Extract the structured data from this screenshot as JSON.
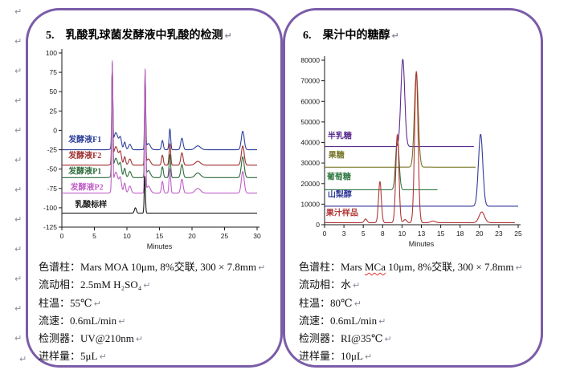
{
  "para_mark": "↵",
  "page": {
    "background": "#ffffff",
    "panel_border_color": "#7a5ca8"
  },
  "panels": [
    {
      "number": "5.",
      "title": "乳酸乳球菌发酵液中乳酸的检测",
      "specs": [
        {
          "label": "色谱柱：",
          "value": "Mars MOA 10μm, 8%交联, 300 × 7.8mm"
        },
        {
          "label": "流动相：",
          "value": "2.5mM H₂SO₄"
        },
        {
          "label": "柱温：",
          "value": "55℃"
        },
        {
          "label": "流速：",
          "value": "0.6mL/min"
        },
        {
          "label": "检测器：",
          "value": "UV@210nm"
        },
        {
          "label": "进样量：",
          "value": "5μL"
        }
      ]
    },
    {
      "number": "6.",
      "title": "果汁中的糖醇",
      "specs": [
        {
          "label": "色谱柱：",
          "value_pre": "Mars ",
          "value_mark": "MCa",
          "value_post": " 10μm, 8%交联, 300 × 7.8mm"
        },
        {
          "label": "流动相：",
          "value": "水"
        },
        {
          "label": "柱温：",
          "value": "80℃"
        },
        {
          "label": "流速：",
          "value": "0.6mL/min"
        },
        {
          "label": "检测器：",
          "value": "RI@35℃"
        },
        {
          "label": "进样量：",
          "value": "10μL"
        }
      ]
    }
  ],
  "chart_data": [
    {
      "type": "line",
      "title": "乳酸乳球菌发酵液中乳酸的检测 (chromatogram)",
      "xlabel": "Minutes",
      "ylabel": "",
      "xlim": [
        0,
        30
      ],
      "ylim": [
        -125,
        100
      ],
      "grid": false,
      "legend_position": "inline-left",
      "x_ticks": {
        "values": [
          0,
          5,
          10,
          15,
          20,
          25,
          30
        ],
        "labels": [
          "0",
          "5",
          "10",
          "15",
          "20",
          "25",
          "30"
        ]
      },
      "y_ticks": {
        "values": [
          100,
          75,
          50,
          25,
          0,
          -25,
          -50,
          -75,
          -100,
          -125
        ],
        "labels": [
          "100",
          "75",
          "50",
          "25",
          "0",
          "-25",
          "-50",
          "-75",
          "-100",
          "-125"
        ]
      },
      "peak_format": "[retention_min, height_above_baseline, sigma_min]",
      "series": [
        {
          "name": "发酵液F1",
          "color": "#2e4099",
          "baseline": -25,
          "peaks": [
            [
              7.75,
              100,
              0.08
            ],
            [
              8.3,
              22,
              0.35
            ],
            [
              9.0,
              14,
              0.18
            ],
            [
              9.65,
              10,
              0.15
            ],
            [
              10.45,
              7,
              0.2
            ],
            [
              12.8,
              97,
              0.08
            ],
            [
              13.3,
              8,
              0.3
            ],
            [
              15.45,
              12,
              0.14
            ],
            [
              16.6,
              27,
              0.12
            ],
            [
              18.45,
              15,
              0.18
            ],
            [
              20.9,
              5,
              0.4
            ],
            [
              27.8,
              24,
              0.22
            ]
          ],
          "x_end": 30,
          "label_pos": [
            1.0,
            -15
          ]
        },
        {
          "name": "发酵液F2",
          "color": "#a03030",
          "baseline": -45,
          "peaks": [
            [
              7.75,
              123,
              0.08
            ],
            [
              8.3,
              24,
              0.35
            ],
            [
              9.0,
              15,
              0.18
            ],
            [
              9.65,
              11,
              0.15
            ],
            [
              10.45,
              8,
              0.2
            ],
            [
              12.8,
              120,
              0.08
            ],
            [
              13.3,
              8,
              0.3
            ],
            [
              15.45,
              13,
              0.14
            ],
            [
              16.6,
              28,
              0.12
            ],
            [
              18.45,
              16,
              0.18
            ],
            [
              20.9,
              5,
              0.4
            ],
            [
              27.8,
              25,
              0.22
            ]
          ],
          "x_end": 30,
          "label_pos": [
            1.0,
            -36
          ]
        },
        {
          "name": "发酵液P1",
          "color": "#2e6b3c",
          "baseline": -61,
          "peaks": [
            [
              7.75,
              141,
              0.08
            ],
            [
              8.3,
              25,
              0.35
            ],
            [
              9.0,
              16,
              0.18
            ],
            [
              9.65,
              12,
              0.15
            ],
            [
              10.45,
              8,
              0.2
            ],
            [
              12.8,
              139,
              0.08
            ],
            [
              13.3,
              9,
              0.3
            ],
            [
              15.45,
              14,
              0.14
            ],
            [
              16.6,
              30,
              0.12
            ],
            [
              18.45,
              17,
              0.18
            ],
            [
              20.9,
              6,
              0.4
            ],
            [
              27.8,
              27,
              0.22
            ]
          ],
          "x_end": 30,
          "label_pos": [
            1.0,
            -56
          ]
        },
        {
          "name": "发酵液P2",
          "color": "#c05fc8",
          "baseline": -81,
          "peaks": [
            [
              7.75,
              163,
              0.08
            ],
            [
              8.3,
              27,
              0.35
            ],
            [
              9.0,
              17,
              0.18
            ],
            [
              9.65,
              13,
              0.15
            ],
            [
              10.45,
              9,
              0.2
            ],
            [
              12.8,
              161,
              0.08
            ],
            [
              13.3,
              9,
              0.3
            ],
            [
              15.45,
              15,
              0.14
            ],
            [
              16.6,
              32,
              0.12
            ],
            [
              18.45,
              18,
              0.18
            ],
            [
              20.9,
              6,
              0.4
            ],
            [
              27.8,
              28,
              0.22
            ]
          ],
          "x_end": 30,
          "label_pos": [
            1.3,
            -77
          ]
        },
        {
          "name": "乳酸标样",
          "color": "#1a1a1a",
          "baseline": -107,
          "peaks": [
            [
              11.3,
              7,
              0.15
            ],
            [
              12.75,
              48,
              0.09
            ]
          ],
          "x_end": 30,
          "label_pos": [
            2.0,
            -99
          ]
        }
      ],
      "clip_top": 97
    },
    {
      "type": "line",
      "title": "果汁中的糖醇 (chromatogram)",
      "xlabel": "Minutes",
      "ylabel": "",
      "xlim": [
        0,
        25
      ],
      "ylim": [
        0,
        80000
      ],
      "grid": false,
      "legend_position": "inline-left",
      "x_ticks": {
        "values": [
          0,
          2.5,
          5,
          7.5,
          10,
          12.5,
          15,
          17.5,
          20,
          22.5,
          25
        ],
        "labels": [
          "0",
          "3",
          "5",
          "8",
          "10",
          "13",
          "15",
          "18",
          "20",
          "23",
          "25"
        ]
      },
      "y_ticks": {
        "values": [
          80000,
          70000,
          60000,
          50000,
          40000,
          30000,
          20000,
          10000,
          0
        ],
        "labels": [
          "80000",
          "70000",
          "60000",
          "50000",
          "40000",
          "30000",
          "20000",
          "10000",
          "0"
        ]
      },
      "peak_format": "[retention_min, height_above_baseline, sigma_min]",
      "series": [
        {
          "name": "半乳糖",
          "color": "#5b2d8e",
          "baseline": 38000,
          "peaks": [
            [
              10.1,
              42500,
              0.25
            ]
          ],
          "x_end": 19.3,
          "label_pos": [
            0.4,
            42000
          ]
        },
        {
          "name": "果糖",
          "color": "#77772a",
          "baseline": 28000,
          "peaks": [
            [
              11.85,
              46000,
              0.25
            ]
          ],
          "x_end": 19.5,
          "label_pos": [
            0.5,
            32500
          ]
        },
        {
          "name": "葡萄糖",
          "color": "#337a44",
          "baseline": 17000,
          "peaks": [
            [
              9.4,
              25000,
              0.22
            ]
          ],
          "x_end": 14.6,
          "label_pos": [
            0.3,
            22000
          ]
        },
        {
          "name": "山梨醇",
          "color": "#333a99",
          "baseline": 9000,
          "peaks": [
            [
              20.15,
              35000,
              0.28
            ]
          ],
          "x_end": 25,
          "label_pos": [
            0.4,
            13500
          ]
        },
        {
          "name": "果汁样品",
          "color": "#b03535",
          "baseline": 1000,
          "peaks": [
            [
              5.3,
              1800,
              0.18
            ],
            [
              7.15,
              20000,
              0.18
            ],
            [
              9.4,
              43000,
              0.2
            ],
            [
              10.4,
              1500,
              0.2
            ],
            [
              11.85,
              73500,
              0.22
            ],
            [
              14.0,
              800,
              0.3
            ],
            [
              20.3,
              5200,
              0.35
            ]
          ],
          "x_end": 24.6,
          "label_pos": [
            0.2,
            4500
          ]
        }
      ],
      "clip_top": 80600
    }
  ]
}
